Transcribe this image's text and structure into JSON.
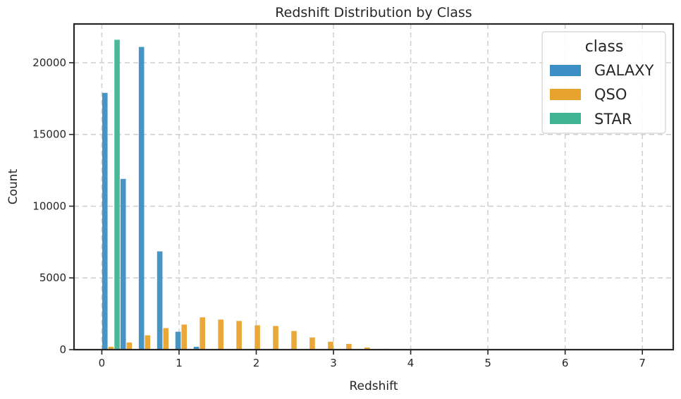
{
  "chart_data": {
    "type": "bar",
    "title": "Redshift Distribution by Class",
    "xlabel": "Redshift",
    "ylabel": "Count",
    "xlim": [
      -0.36,
      7.4
    ],
    "ylim": [
      0,
      22700
    ],
    "xticks": [
      0,
      1,
      2,
      3,
      4,
      5,
      6,
      7
    ],
    "yticks": [
      0,
      5000,
      10000,
      15000,
      20000
    ],
    "grid": true,
    "legend": {
      "title": "class",
      "placement": "top-right"
    },
    "bin_width": 0.237,
    "series": [
      {
        "name": "GALAXY",
        "color": "#3b8fc4",
        "bins": [
          0,
          0.237,
          0.474,
          0.711,
          0.948,
          1.185
        ],
        "values": [
          17900,
          11900,
          21100,
          6850,
          1250,
          200
        ]
      },
      {
        "name": "QSO",
        "color": "#e8a32e",
        "bins": [
          0,
          0.237,
          0.474,
          0.711,
          0.948,
          1.185,
          1.422,
          1.659,
          1.896,
          2.133,
          2.37,
          2.607,
          2.844,
          3.081,
          3.318,
          3.555,
          3.792,
          4.029,
          4.266,
          4.503,
          4.74,
          4.977,
          5.214,
          5.451,
          5.688,
          5.925,
          6.162,
          6.399,
          6.636,
          6.873
        ],
        "values": [
          200,
          500,
          1000,
          1500,
          1750,
          2250,
          2100,
          2000,
          1700,
          1650,
          1300,
          850,
          550,
          400,
          150,
          60,
          40,
          25,
          15,
          10,
          8,
          6,
          5,
          4,
          3,
          3,
          2,
          2,
          2,
          2
        ]
      },
      {
        "name": "STAR",
        "color": "#3fb595",
        "bins": [
          0
        ],
        "values": [
          21600
        ]
      }
    ]
  }
}
